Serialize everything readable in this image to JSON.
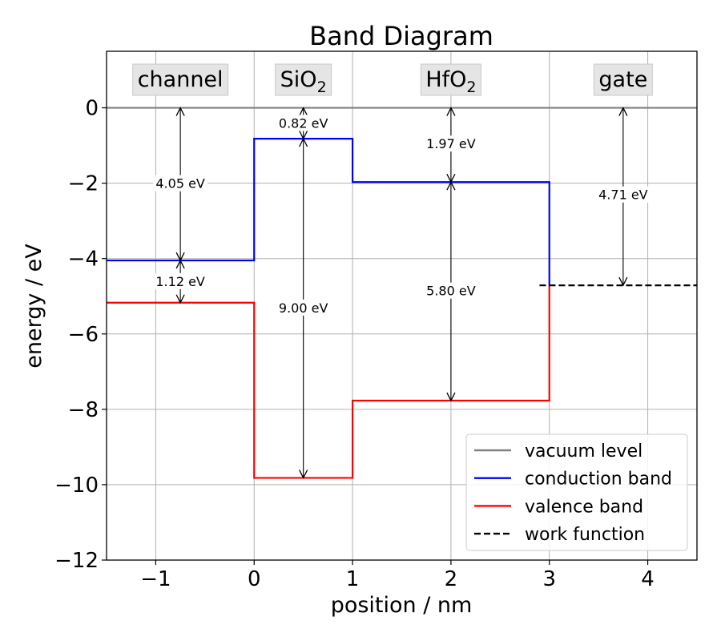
{
  "chart_data": {
    "type": "line",
    "title": "Band Diagram",
    "xlabel": "position / nm",
    "ylabel": "energy / eV",
    "xlim": [
      -1.5,
      4.5
    ],
    "ylim": [
      -12,
      1.5
    ],
    "xticks": [
      -1,
      0,
      1,
      2,
      3,
      4
    ],
    "yticks": [
      0,
      -2,
      -4,
      -6,
      -8,
      -10,
      -12
    ],
    "grid": true,
    "legend_position": "lower right",
    "regions": [
      {
        "label": "channel",
        "sub": "",
        "x": -0.75
      },
      {
        "label": "SiO",
        "sub": "2",
        "x": 0.5
      },
      {
        "label": "HfO",
        "sub": "2",
        "x": 2.0
      },
      {
        "label": "gate",
        "sub": "",
        "x": 3.75
      }
    ],
    "series": [
      {
        "name": "vacuum level",
        "color": "#808080",
        "style": "solid",
        "points": [
          [
            -1.5,
            0
          ],
          [
            4.5,
            0
          ]
        ]
      },
      {
        "name": "conduction band",
        "color": "#0000ff",
        "style": "solid",
        "points": [
          [
            -1.5,
            -4.05
          ],
          [
            0,
            -4.05
          ],
          [
            0,
            -0.82
          ],
          [
            1,
            -0.82
          ],
          [
            1,
            -1.97
          ],
          [
            3,
            -1.97
          ],
          [
            3,
            -4.71
          ]
        ]
      },
      {
        "name": "valence band",
        "color": "#ff0000",
        "style": "solid",
        "points": [
          [
            -1.5,
            -5.17
          ],
          [
            0,
            -5.17
          ],
          [
            0,
            -9.82
          ],
          [
            1,
            -9.82
          ],
          [
            1,
            -7.77
          ],
          [
            3,
            -7.77
          ],
          [
            3,
            -4.71
          ]
        ]
      },
      {
        "name": "work function",
        "color": "#000000",
        "style": "dashed",
        "points": [
          [
            2.9,
            -4.71
          ],
          [
            4.5,
            -4.71
          ]
        ]
      }
    ],
    "annotations": [
      {
        "text": "4.05 eV",
        "x": -0.75,
        "y1": 0,
        "y2": -4.05,
        "label_y": -2.0
      },
      {
        "text": "1.12 eV",
        "x": -0.75,
        "y1": -4.05,
        "y2": -5.17,
        "label_y": -4.6
      },
      {
        "text": "0.82 eV",
        "x": 0.5,
        "y1": 0,
        "y2": -0.82,
        "label_y": -0.4
      },
      {
        "text": "9.00 eV",
        "x": 0.5,
        "y1": -0.82,
        "y2": -9.82,
        "label_y": -5.3
      },
      {
        "text": "1.97 eV",
        "x": 2.0,
        "y1": 0,
        "y2": -1.97,
        "label_y": -0.95
      },
      {
        "text": "5.80 eV",
        "x": 2.0,
        "y1": -1.97,
        "y2": -7.77,
        "label_y": -4.85
      },
      {
        "text": "4.71 eV",
        "x": 3.75,
        "y1": 0,
        "y2": -4.71,
        "label_y": -2.3
      }
    ]
  }
}
